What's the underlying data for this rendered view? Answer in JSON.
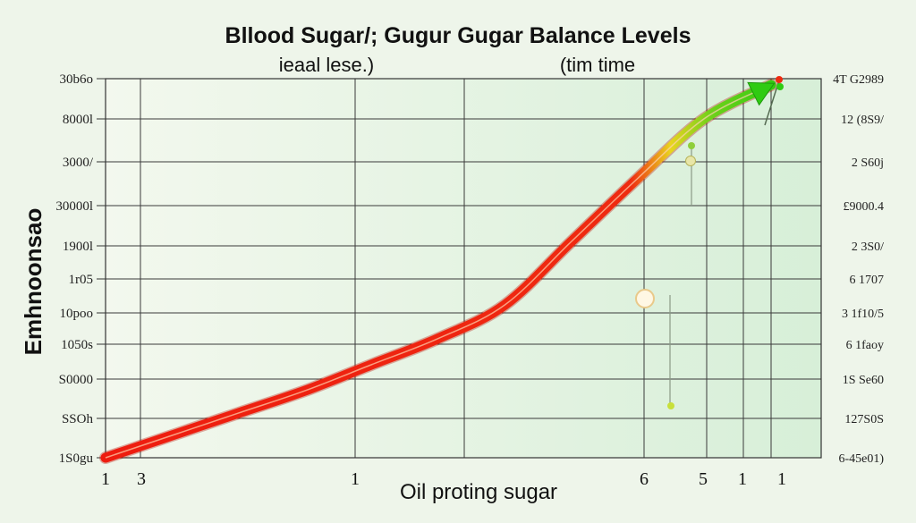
{
  "chart_data": {
    "type": "line",
    "title": "Bllood Sugar/; Gugur Gugar Balance  Levels",
    "subtitle_left": "ieaal lese.)",
    "subtitle_right": "(tim time",
    "xlabel": "Oil proting sugar",
    "ylabel": "Emhnoonsao",
    "x_tick_labels": [
      "1",
      "3",
      "1",
      "6",
      "5",
      "1",
      "1"
    ],
    "y_tick_labels_left": [
      "30b6o",
      "8000l",
      "3000/",
      "30000l",
      "1900l",
      "1r05",
      "10poo",
      "1050s",
      "S0000",
      "SSOh",
      "1S0gu"
    ],
    "y_tick_labels_right": [
      "4T G2989",
      "12 (8S9/",
      "2 S60j",
      "£9000.4",
      "2 3S0/",
      "6 1707",
      "3 1f10/5",
      "6 1faoy",
      "1S Se60",
      "127S0S",
      "6-45e01)"
    ],
    "grid": true,
    "colors": {
      "low": "#ee1c0f",
      "mid": "#e9d41e",
      "high": "#2fcb12"
    },
    "series": [
      {
        "x": [
          0,
          1,
          2,
          3,
          4,
          5,
          6,
          7,
          8,
          9,
          10
        ],
        "y": [
          0,
          0.6,
          1.2,
          1.8,
          2.5,
          3.2,
          4.1,
          5.8,
          7.5,
          9.1,
          10
        ]
      }
    ]
  }
}
